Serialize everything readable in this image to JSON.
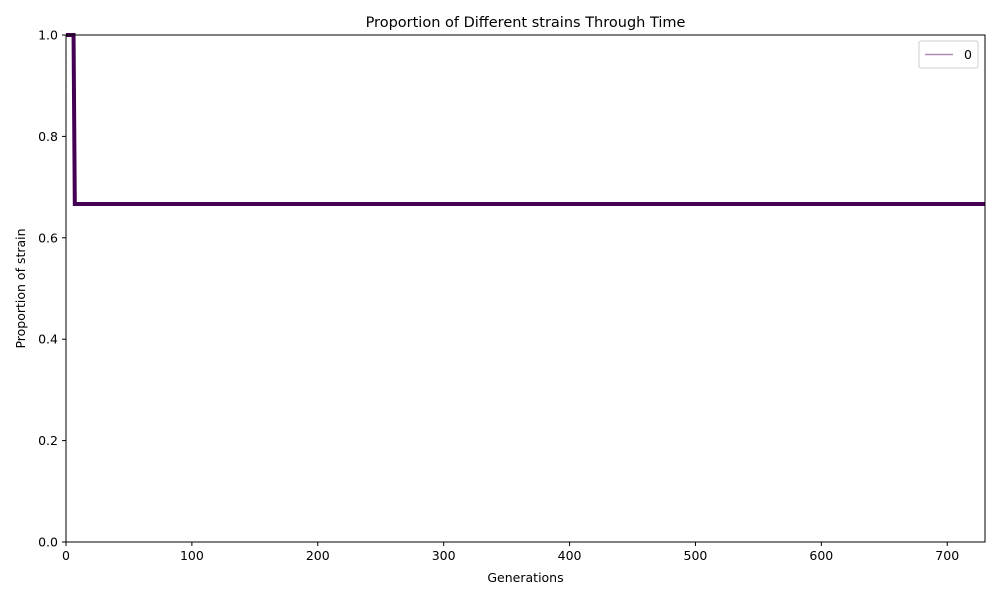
{
  "chart_data": {
    "type": "line",
    "title": "Proportion of Different strains Through Time",
    "xlabel": "Generations",
    "ylabel": "Proportion of strain",
    "xlim": [
      0,
      730
    ],
    "ylim": [
      0.0,
      1.0
    ],
    "xticks": [
      0,
      100,
      200,
      300,
      400,
      500,
      600,
      700
    ],
    "xtick_labels": [
      "0",
      "100",
      "200",
      "300",
      "400",
      "500",
      "600",
      "700"
    ],
    "yticks": [
      0.0,
      0.2,
      0.4,
      0.6,
      0.8,
      1.0
    ],
    "ytick_labels": [
      "0.0",
      "0.2",
      "0.4",
      "0.6",
      "0.8",
      "1.0"
    ],
    "grid": false,
    "legend_position": "top-right",
    "series": [
      {
        "name": "0",
        "color": "#440154",
        "x": [
          0,
          1,
          2,
          3,
          4,
          5,
          6,
          7,
          730
        ],
        "y": [
          1.0,
          1.0,
          1.0,
          1.0,
          1.0,
          1.0,
          1.0,
          0.6667,
          0.6667
        ]
      }
    ]
  }
}
